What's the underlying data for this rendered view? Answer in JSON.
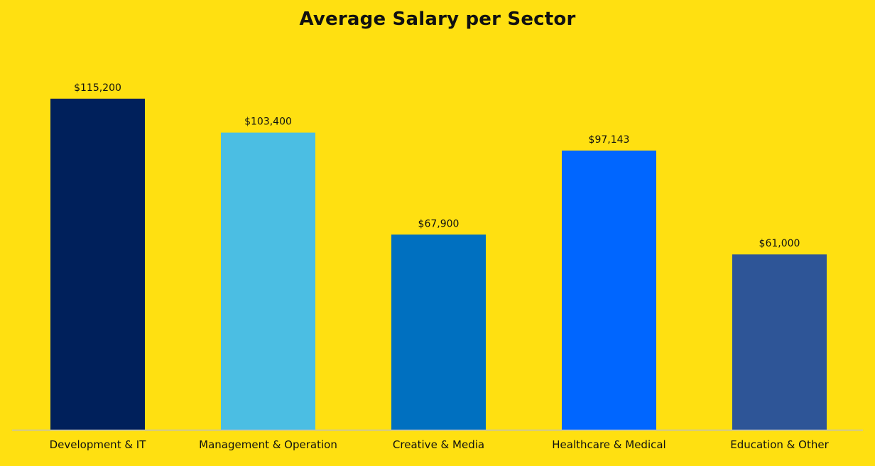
{
  "chart_data": {
    "type": "bar",
    "title": "Average Salary per Sector",
    "xlabel": "",
    "ylabel": "",
    "categories": [
      "Development & IT",
      "Management & Operation",
      "Creative & Media",
      "Healthcare & Medical",
      "Education & Other"
    ],
    "values": [
      115200,
      103400,
      67900,
      97143,
      61000
    ],
    "data_labels": [
      "$115,200",
      "$103,400",
      "$67,900",
      "$97,143",
      "$61,000"
    ],
    "bar_colors": [
      "#00205B",
      "#4BBEE3",
      "#0070C0",
      "#0066FF",
      "#2E5597"
    ],
    "ylim": [
      0,
      130000
    ],
    "grid": false,
    "legend": "none"
  },
  "colors": {
    "background": "#FFE011",
    "text": "#111111",
    "axis_line": "#BFBFBF"
  }
}
